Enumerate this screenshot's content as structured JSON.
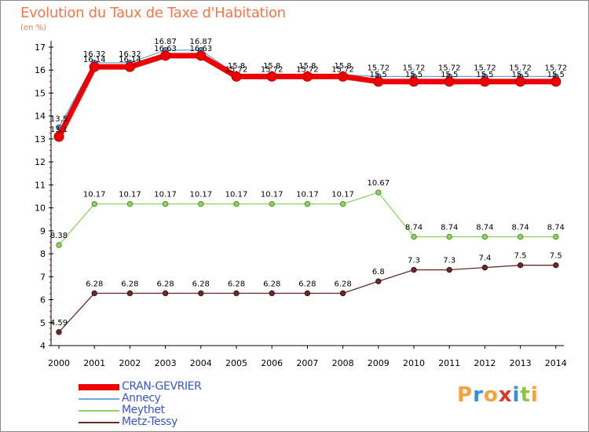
{
  "title": "Evolution du Taux de Taxe d'Habitation",
  "subtitle": "(en %)",
  "logo": {
    "text": "Proxiti",
    "colors": [
      "#f6a23c",
      "#3a8fd3",
      "#f6a23c",
      "#d93a2a",
      "#3a8fd3",
      "#8cc63f",
      "#f6a23c"
    ]
  },
  "chart_data": {
    "type": "line",
    "title": "Evolution du Taux de Taxe d'Habitation",
    "ylabel": "(en %)",
    "xlabel": "",
    "ylim": [
      4,
      17
    ],
    "yticks": [
      "4",
      "5",
      "6",
      "7",
      "8",
      "9",
      "10",
      "11",
      "12",
      "13",
      "14",
      "15",
      "16",
      "17"
    ],
    "categories": [
      "2000",
      "2001",
      "2002",
      "2003",
      "2004",
      "2005",
      "2006",
      "2007",
      "2008",
      "2009",
      "2010",
      "2011",
      "2012",
      "2013",
      "2014"
    ],
    "grid": false,
    "legend_position": "bottom-left",
    "series": [
      {
        "name": "Annecy",
        "color": "#6fa8dc",
        "values": [
          13.5,
          16.32,
          16.32,
          16.87,
          16.87,
          15.8,
          15.8,
          15.8,
          15.8,
          15.72,
          15.72,
          15.72,
          15.72,
          15.72,
          15.72
        ],
        "labels": [
          "13.5",
          "16.32",
          "16.32",
          "16.87",
          "16.87",
          "15.8",
          "15.8",
          "15.8",
          "15.8",
          "15.72",
          "15.72",
          "15.72",
          "15.72",
          "15.72",
          "15.72"
        ]
      },
      {
        "name": "CRAN-GEVRIER",
        "color": "#ee0000",
        "values": [
          13.1,
          16.14,
          16.14,
          16.63,
          16.63,
          15.72,
          15.72,
          15.72,
          15.72,
          15.5,
          15.5,
          15.5,
          15.5,
          15.5,
          15.5
        ],
        "labels": [
          "13.1",
          "16.14",
          "16.14",
          "16.63",
          "16.63",
          "15.72",
          "15.72",
          "15.72",
          "15.72",
          "15.5",
          "15.5",
          "15.5",
          "15.5",
          "15.5",
          "15.5"
        ]
      },
      {
        "name": "Meythet",
        "color": "#8fd35f",
        "values": [
          8.38,
          10.17,
          10.17,
          10.17,
          10.17,
          10.17,
          10.17,
          10.17,
          10.17,
          10.67,
          8.74,
          8.74,
          8.74,
          8.74,
          8.74
        ],
        "labels": [
          "8.38",
          "10.17",
          "10.17",
          "10.17",
          "10.17",
          "10.17",
          "10.17",
          "10.17",
          "10.17",
          "10.67",
          "8.74",
          "8.74",
          "8.74",
          "8.74",
          "8.74"
        ]
      },
      {
        "name": "Metz-Tessy",
        "color": "#6b2a2a",
        "values": [
          4.59,
          6.28,
          6.28,
          6.28,
          6.28,
          6.28,
          6.28,
          6.28,
          6.28,
          6.8,
          7.3,
          7.3,
          7.4,
          7.5,
          7.5
        ],
        "labels": [
          "4.59",
          "6.28",
          "6.28",
          "6.28",
          "6.28",
          "6.28",
          "6.28",
          "6.28",
          "6.28",
          "6.8",
          "7.3",
          "7.3",
          "7.4",
          "7.5",
          "7.5"
        ]
      }
    ],
    "legend": [
      "CRAN-GEVRIER",
      "Annecy",
      "Meythet",
      "Metz-Tessy"
    ]
  }
}
